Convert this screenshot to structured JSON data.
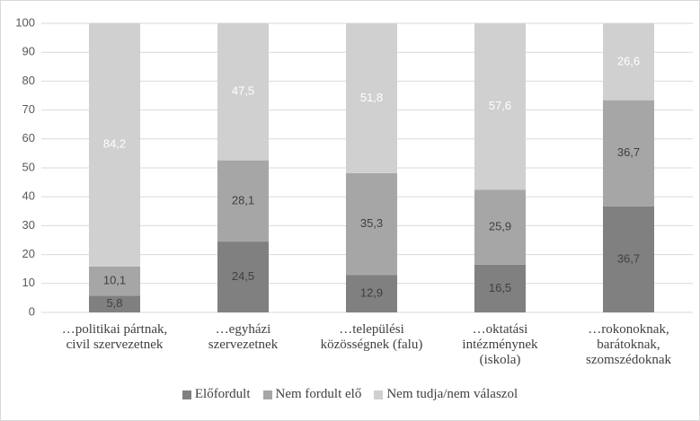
{
  "chart_data": {
    "type": "stacked_bar",
    "categories": [
      "…politikai pártnak,\ncivil szervezetnek",
      "…egyházi\nszervezetnek",
      "…települési\nközösségnek (falu)",
      "…oktatási\nintézménynek\n(iskola)",
      "…rokonoknak,\nbarátoknak,\nszomszédoknak"
    ],
    "series": [
      {
        "name": "Előfordult",
        "color": "#808080",
        "values": [
          5.8,
          24.5,
          12.9,
          16.5,
          36.7
        ],
        "value_labels": [
          "5,8",
          "24,5",
          "12,9",
          "16,5",
          "36,7"
        ]
      },
      {
        "name": "Nem fordult elő",
        "color": "#a6a6a6",
        "values": [
          10.1,
          28.1,
          35.3,
          25.9,
          36.7
        ],
        "value_labels": [
          "10,1",
          "28,1",
          "35,3",
          "25,9",
          "36,7"
        ]
      },
      {
        "name": "Nem tudja/nem válaszol",
        "color": "#d0d0d0",
        "values": [
          84.2,
          47.5,
          51.8,
          57.6,
          26.6
        ],
        "value_labels": [
          "84,2",
          "47,5",
          "51,8",
          "57,6",
          "26,6"
        ]
      }
    ],
    "ylim": [
      0,
      100
    ],
    "yticks": [
      0,
      10,
      20,
      30,
      40,
      50,
      60,
      70,
      80,
      90,
      100
    ],
    "grid": true,
    "legend": "bottom"
  }
}
